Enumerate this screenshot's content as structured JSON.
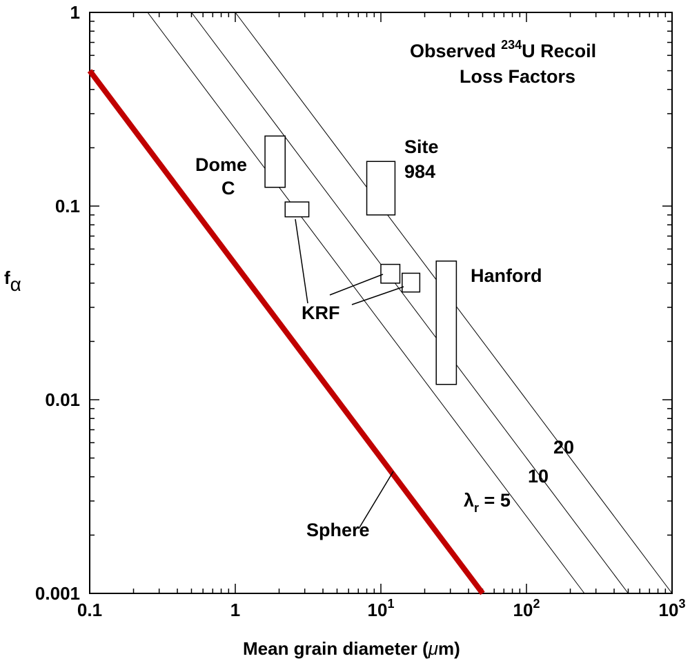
{
  "chart_data": {
    "type": "scatter",
    "title_line1_pre": "Observed ",
    "title_sup": "234",
    "title_line1_post": "U Recoil",
    "title_line2": "Loss Factors",
    "xlabel": "Mean grain diameter (",
    "xlabel_mu": "μ",
    "xlabel_post": "m)",
    "ylabel": "f",
    "ylabel_sub": "α",
    "x_scale": "log",
    "y_scale": "log",
    "xlim": [
      0.1,
      1000
    ],
    "ylim": [
      0.001,
      1
    ],
    "x_ticks": [
      {
        "value": 0.1,
        "label": "0.1",
        "sup": ""
      },
      {
        "value": 1,
        "label": "1",
        "sup": ""
      },
      {
        "value": 10,
        "label": "10",
        "sup": "1"
      },
      {
        "value": 100,
        "label": "10",
        "sup": "2"
      },
      {
        "value": 1000,
        "label": "10",
        "sup": "3"
      }
    ],
    "y_ticks": [
      {
        "value": 0.001,
        "label": "0.001"
      },
      {
        "value": 0.01,
        "label": "0.01"
      },
      {
        "value": 0.1,
        "label": "0.1"
      },
      {
        "value": 1,
        "label": "1"
      }
    ],
    "sphere_line": {
      "label": "Sphere",
      "color": "#c00000",
      "points": [
        [
          0.1,
          0.5
        ],
        [
          50,
          0.001
        ]
      ]
    },
    "roughness_lines": [
      {
        "label": "λr = 5",
        "points": [
          [
            0.25,
            1
          ],
          [
            250,
            0.001
          ]
        ]
      },
      {
        "label": "10",
        "points": [
          [
            0.5,
            1
          ],
          [
            500,
            0.001
          ]
        ]
      },
      {
        "label": "20",
        "points": [
          [
            1,
            1
          ],
          [
            1000,
            0.001
          ]
        ]
      }
    ],
    "lambda_label": {
      "symbol": "λ",
      "sub": "r",
      "rest": " = 5"
    },
    "ranges": [
      {
        "name": "Dome C",
        "label_lines": [
          "Dome",
          "C"
        ],
        "x": [
          1.6,
          2.2
        ],
        "y": [
          0.125,
          0.23
        ]
      },
      {
        "name": "KRF",
        "x": [
          2.2,
          3.2
        ],
        "y": [
          0.088,
          0.105
        ]
      },
      {
        "name": "KRF",
        "x": [
          10,
          13.5
        ],
        "y": [
          0.04,
          0.05
        ]
      },
      {
        "name": "KRF",
        "x": [
          14,
          18.5
        ],
        "y": [
          0.036,
          0.045
        ]
      },
      {
        "name": "Site 984",
        "label_lines": [
          "Site",
          "984"
        ],
        "x": [
          8,
          12.5
        ],
        "y": [
          0.09,
          0.17
        ]
      },
      {
        "name": "Hanford",
        "label_lines": [
          "Hanford"
        ],
        "x": [
          24,
          33
        ],
        "y": [
          0.012,
          0.052
        ]
      }
    ],
    "krf_label": "KRF",
    "grid": false
  }
}
